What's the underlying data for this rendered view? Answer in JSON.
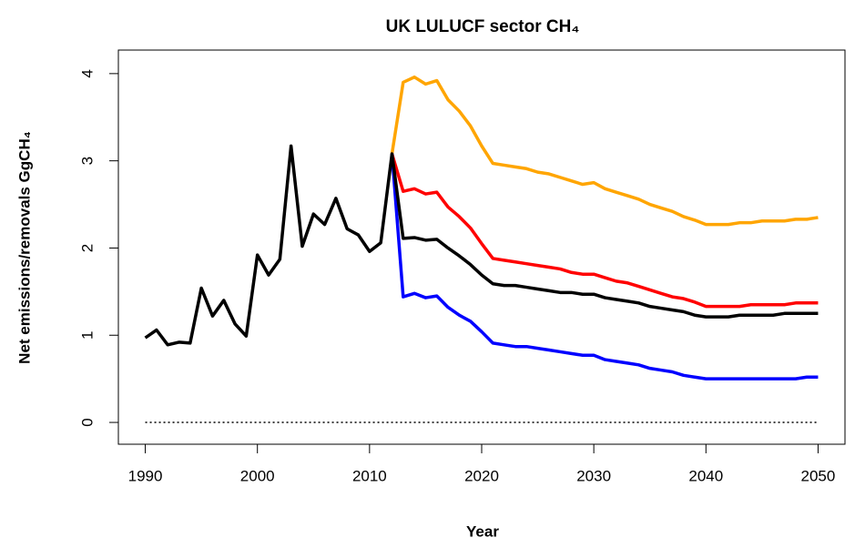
{
  "chart_data": {
    "type": "line",
    "title": "UK LULUCF sector CH₄",
    "x_label": "Year",
    "y_label": "Net emissions/removals GgCH₄",
    "x": [
      1990,
      1991,
      1992,
      1993,
      1994,
      1995,
      1996,
      1997,
      1998,
      1999,
      2000,
      2001,
      2002,
      2003,
      2004,
      2005,
      2006,
      2007,
      2008,
      2009,
      2010,
      2011,
      2012,
      2013,
      2014,
      2015,
      2016,
      2017,
      2018,
      2019,
      2020,
      2021,
      2022,
      2023,
      2024,
      2025,
      2026,
      2027,
      2028,
      2029,
      2030,
      2031,
      2032,
      2033,
      2034,
      2035,
      2036,
      2037,
      2038,
      2039,
      2040,
      2041,
      2042,
      2043,
      2044,
      2045,
      2046,
      2047,
      2048,
      2049,
      2050
    ],
    "series": [
      {
        "color": "#ffa500",
        "values": [
          null,
          null,
          null,
          null,
          null,
          null,
          null,
          null,
          null,
          null,
          null,
          null,
          null,
          null,
          null,
          null,
          null,
          null,
          null,
          null,
          null,
          null,
          3.08,
          3.9,
          3.96,
          3.88,
          3.92,
          3.7,
          3.57,
          3.4,
          3.17,
          2.97,
          2.95,
          2.93,
          2.91,
          2.87,
          2.85,
          2.81,
          2.77,
          2.73,
          2.75,
          2.68,
          2.64,
          2.6,
          2.56,
          2.5,
          2.46,
          2.42,
          2.36,
          2.32,
          2.27,
          2.27,
          2.27,
          2.29,
          2.29,
          2.31,
          2.31,
          2.31,
          2.33,
          2.33,
          2.35
        ]
      },
      {
        "color": "#ff0000",
        "values": [
          null,
          null,
          null,
          null,
          null,
          null,
          null,
          null,
          null,
          null,
          null,
          null,
          null,
          null,
          null,
          null,
          null,
          null,
          null,
          null,
          null,
          null,
          3.08,
          2.65,
          2.68,
          2.62,
          2.64,
          2.47,
          2.36,
          2.23,
          2.05,
          1.88,
          1.86,
          1.84,
          1.82,
          1.8,
          1.78,
          1.76,
          1.72,
          1.7,
          1.7,
          1.66,
          1.62,
          1.6,
          1.56,
          1.52,
          1.48,
          1.44,
          1.42,
          1.38,
          1.33,
          1.33,
          1.33,
          1.33,
          1.35,
          1.35,
          1.35,
          1.35,
          1.37,
          1.37,
          1.37
        ]
      },
      {
        "color": "#0000ff",
        "values": [
          null,
          null,
          null,
          null,
          null,
          null,
          null,
          null,
          null,
          null,
          null,
          null,
          null,
          null,
          null,
          null,
          null,
          null,
          null,
          null,
          null,
          null,
          3.08,
          1.44,
          1.48,
          1.43,
          1.45,
          1.32,
          1.23,
          1.16,
          1.04,
          0.91,
          0.89,
          0.87,
          0.87,
          0.85,
          0.83,
          0.81,
          0.79,
          0.77,
          0.77,
          0.72,
          0.7,
          0.68,
          0.66,
          0.62,
          0.6,
          0.58,
          0.54,
          0.52,
          0.5,
          0.5,
          0.5,
          0.5,
          0.5,
          0.5,
          0.5,
          0.5,
          0.5,
          0.52,
          0.52
        ]
      },
      {
        "color": "#000000",
        "values": [
          0.97,
          1.06,
          0.89,
          0.92,
          0.91,
          1.54,
          1.22,
          1.4,
          1.13,
          0.99,
          1.92,
          1.69,
          1.87,
          3.17,
          2.02,
          2.39,
          2.27,
          2.57,
          2.22,
          2.15,
          1.96,
          2.06,
          3.08,
          2.11,
          2.12,
          2.09,
          2.1,
          2.0,
          1.91,
          1.81,
          1.69,
          1.59,
          1.57,
          1.57,
          1.55,
          1.53,
          1.51,
          1.49,
          1.49,
          1.47,
          1.47,
          1.43,
          1.41,
          1.39,
          1.37,
          1.33,
          1.31,
          1.29,
          1.27,
          1.23,
          1.21,
          1.21,
          1.21,
          1.23,
          1.23,
          1.23,
          1.23,
          1.25,
          1.25,
          1.25,
          1.25
        ]
      }
    ],
    "hline": 0,
    "xlim": [
      1987.6,
      2052.4
    ],
    "ylim": [
      -0.25,
      4.27
    ],
    "xticks": [
      1990,
      2000,
      2010,
      2020,
      2030,
      2040,
      2050
    ],
    "yticks": [
      0,
      1,
      2,
      3,
      4
    ]
  }
}
